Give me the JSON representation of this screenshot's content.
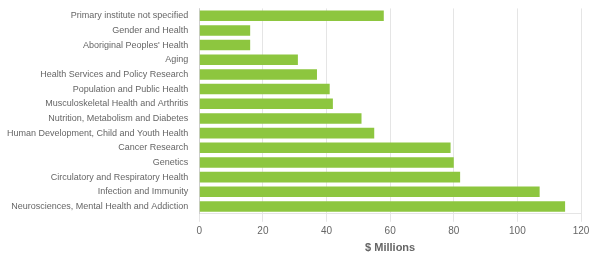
{
  "chart_data": {
    "type": "bar",
    "orientation": "horizontal",
    "categories": [
      "Neurosciences, Mental Health and Addiction",
      "Infection and Immunity",
      "Circulatory and Respiratory Health",
      "Genetics",
      "Cancer Research",
      "Human Development, Child and Youth Health",
      "Nutrition, Metabolism and Diabetes",
      "Musculoskeletal Health and Arthritis",
      "Population and Public Health",
      "Health Services and Policy Research",
      "Aging",
      "Aboriginal Peoples' Health",
      "Gender and Health",
      "Primary institute not specified"
    ],
    "values": [
      115,
      107,
      82,
      80,
      79,
      55,
      51,
      42,
      41,
      37,
      31,
      16,
      16,
      58
    ],
    "color": "#8DC63F",
    "xlabel": "$ Millions",
    "xlim": [
      0,
      120
    ],
    "xticks": [
      0,
      20,
      40,
      60,
      80,
      100,
      120
    ],
    "grid": true
  }
}
